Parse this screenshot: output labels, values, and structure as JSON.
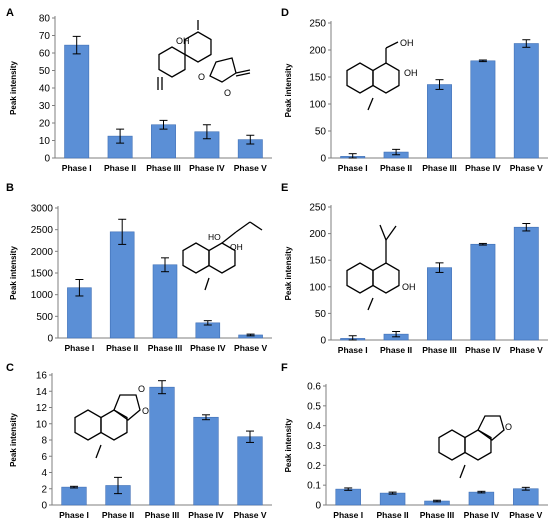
{
  "chart_data": [
    {
      "panel": "A",
      "type": "bar",
      "categories": [
        "Phase I",
        "Phase II",
        "Phase III",
        "Phase IV",
        "Phase V"
      ],
      "values": [
        64.5,
        12.5,
        19,
        15,
        10.5
      ],
      "errors": [
        5,
        4,
        2.5,
        4,
        2.5
      ],
      "ylabel": "Peak intensity",
      "ylim": [
        0,
        80
      ],
      "ystep": 10,
      "structure_labels": [
        "OH",
        "O",
        "O"
      ]
    },
    {
      "panel": "B",
      "type": "bar",
      "categories": [
        "Phase I",
        "Phase II",
        "Phase III",
        "Phase IV",
        "Phase V"
      ],
      "values": [
        1160,
        2450,
        1690,
        350,
        70
      ],
      "errors": [
        190,
        290,
        160,
        50,
        20
      ],
      "ylabel": "Peak intensity",
      "ylim": [
        0,
        3000
      ],
      "ystep": 500,
      "structure_labels": [
        "HO",
        "OH"
      ]
    },
    {
      "panel": "C",
      "type": "bar",
      "categories": [
        "Phase I",
        "Phase II",
        "Phase III",
        "Phase IV",
        "Phase V"
      ],
      "values": [
        2.2,
        2.4,
        14.5,
        10.8,
        8.4
      ],
      "errors": [
        0.1,
        1.0,
        0.8,
        0.3,
        0.7
      ],
      "ylabel": "Peak intensity",
      "ylim": [
        0,
        16
      ],
      "ystep": 2,
      "structure_labels": [
        "O",
        "O"
      ]
    },
    {
      "panel": "D",
      "type": "bar",
      "categories": [
        "Phase I",
        "Phase II",
        "Phase III",
        "Phase IV",
        "Phase V"
      ],
      "values": [
        3,
        11,
        136,
        180,
        212
      ],
      "errors": [
        5,
        5,
        9,
        1.5,
        7
      ],
      "ylabel": "Peak intensity",
      "ylim": [
        0,
        250
      ],
      "ystep": 50,
      "structure_labels": [
        "OH",
        "OH"
      ]
    },
    {
      "panel": "E",
      "type": "bar",
      "categories": [
        "Phase I",
        "Phase II",
        "Phase III",
        "Phase IV",
        "Phase V"
      ],
      "values": [
        3,
        11,
        136,
        180,
        212
      ],
      "errors": [
        5,
        5,
        9,
        1.5,
        7
      ],
      "ylabel": "Peak intensity",
      "ylim": [
        0,
        250
      ],
      "ystep": 50,
      "structure_labels": [
        "OH"
      ]
    },
    {
      "panel": "F",
      "type": "bar",
      "categories": [
        "Phase I",
        "Phase II",
        "Phase III",
        "Phase IV",
        "Phase V"
      ],
      "values": [
        0.08,
        0.06,
        0.02,
        0.065,
        0.082
      ],
      "errors": [
        0.006,
        0.005,
        0.004,
        0.004,
        0.007
      ],
      "ylabel": "Peak intensity",
      "ylim": [
        0,
        0.6
      ],
      "ystep": 0.1,
      "structure_labels": [
        "O"
      ]
    }
  ],
  "colors": {
    "bar": "#5b8fd6",
    "bar_edge": "#3f6fb5",
    "axis": "#7f7f7f"
  }
}
